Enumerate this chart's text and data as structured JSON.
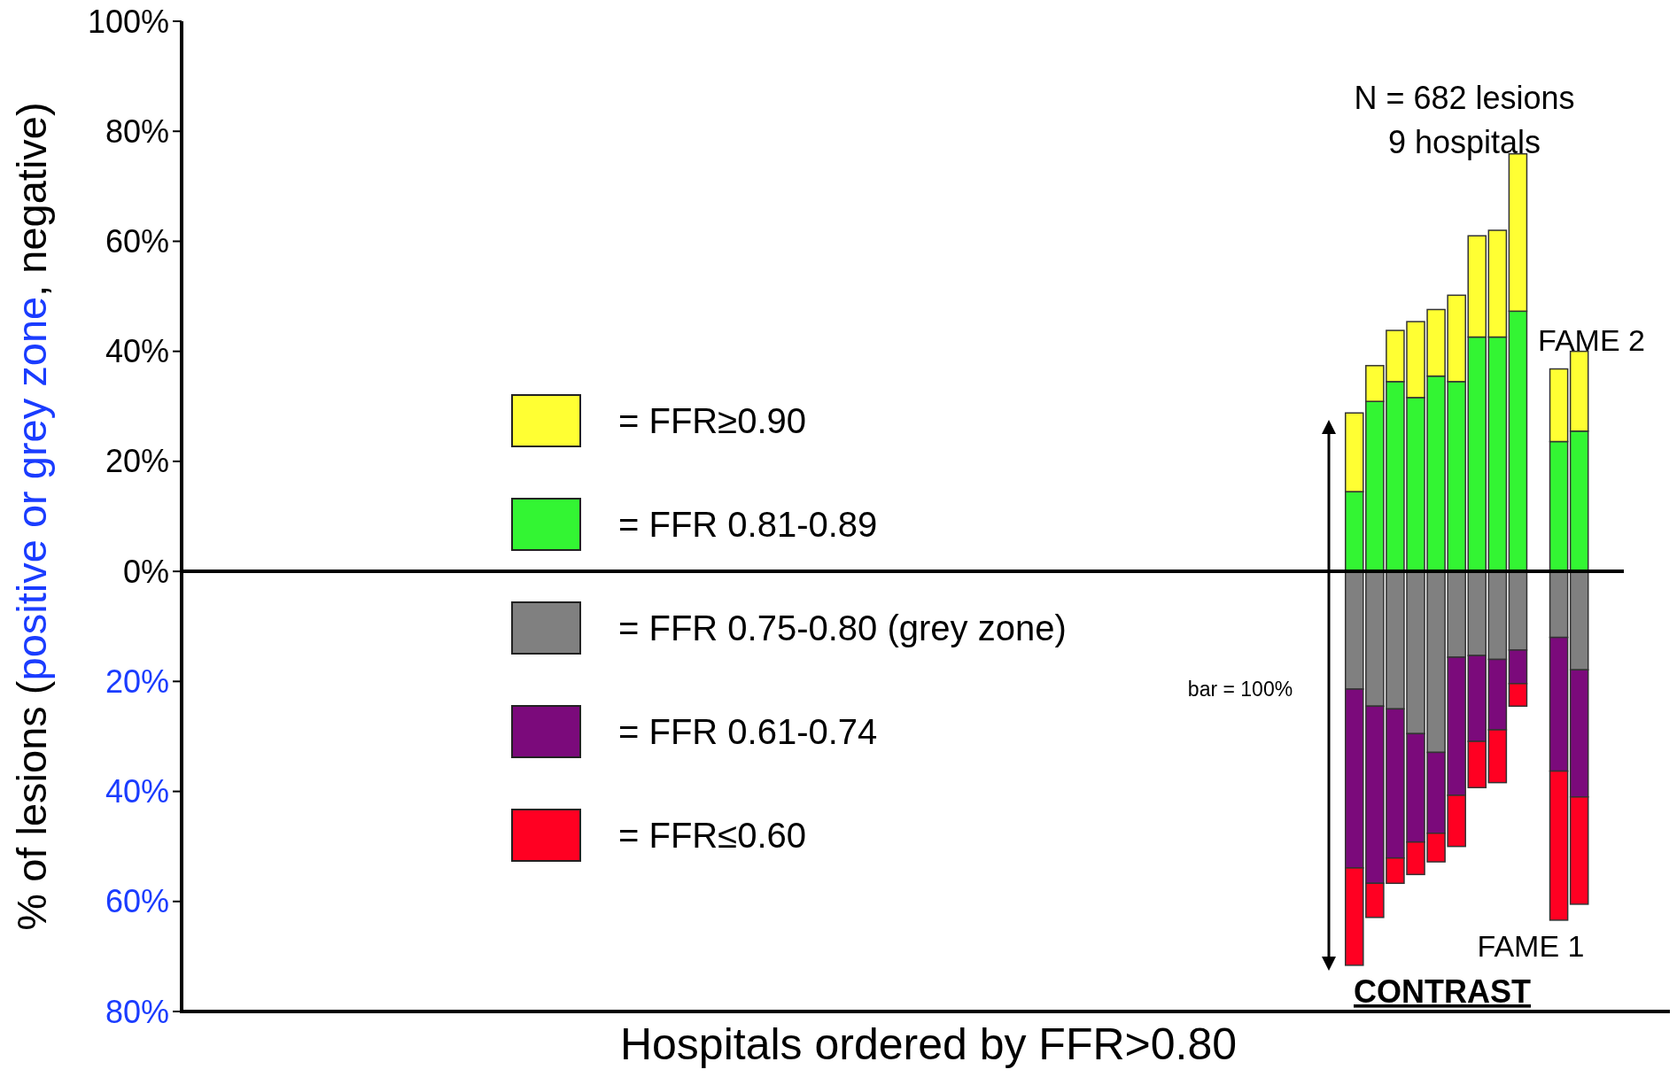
{
  "chart_data": {
    "type": "bar",
    "stacked": true,
    "xlabel": "Hospitals ordered by FFR>0.80",
    "ylabel": "% of lesions (positive or grey zone, negative)",
    "categories": [
      null,
      null,
      null,
      null,
      null,
      null,
      null,
      null,
      null,
      null,
      null,
      null,
      null,
      null,
      null,
      null,
      null,
      null,
      null,
      null,
      null,
      null,
      null,
      null,
      null,
      null,
      null,
      null,
      null,
      null,
      null,
      null,
      null,
      null,
      null,
      null,
      null,
      null,
      null,
      null,
      null,
      null,
      null,
      null,
      null,
      null,
      null,
      null,
      null,
      null,
      null,
      null,
      null,
      null,
      null,
      null,
      null,
      null,
      null,
      null,
      null,
      null,
      null,
      null,
      null,
      null,
      null,
      null,
      null,
      null,
      null,
      null,
      null
    ],
    "series": [
      {
        "name": "= FFR 0.81-0.89",
        "color": "#33f533",
        "values": [
          null,
          null,
          null,
          null,
          null,
          null,
          null,
          null,
          null,
          null,
          null,
          null,
          null,
          null,
          null,
          null,
          null,
          null,
          null,
          null,
          null,
          null,
          null,
          null,
          null,
          null,
          null,
          null,
          null,
          null,
          null,
          null,
          null,
          null,
          null,
          null,
          null,
          null,
          null,
          null,
          null,
          null,
          null,
          null,
          null,
          null,
          null,
          null,
          null,
          null,
          null,
          null,
          null,
          null,
          null,
          null,
          null,
          null,
          14.5,
          30.9,
          34.5,
          31.6,
          35.5,
          34.5,
          42.6,
          42.6,
          47.3,
          null,
          23.6,
          25.5,
          null,
          null,
          null
        ]
      },
      {
        "name": "= FFR≥0.90",
        "color": "#ffff33",
        "values": [
          null,
          null,
          null,
          null,
          null,
          null,
          null,
          null,
          null,
          null,
          null,
          null,
          null,
          null,
          null,
          null,
          null,
          null,
          null,
          null,
          null,
          null,
          null,
          null,
          null,
          null,
          null,
          null,
          null,
          null,
          null,
          null,
          null,
          null,
          null,
          null,
          null,
          null,
          null,
          null,
          null,
          null,
          null,
          null,
          null,
          null,
          null,
          null,
          null,
          null,
          null,
          null,
          null,
          null,
          null,
          null,
          null,
          null,
          14.3,
          6.5,
          9.3,
          13.8,
          12.1,
          15.7,
          18.4,
          19.4,
          28.6,
          null,
          13.2,
          14.5,
          null,
          null,
          null
        ]
      },
      {
        "name": "= FFR 0.75-0.80 (grey zone)",
        "color": "#808080",
        "values": [
          null,
          null,
          null,
          null,
          null,
          null,
          null,
          null,
          null,
          null,
          null,
          null,
          null,
          null,
          null,
          null,
          null,
          null,
          null,
          null,
          null,
          null,
          null,
          null,
          null,
          null,
          null,
          null,
          null,
          null,
          null,
          null,
          null,
          null,
          null,
          null,
          null,
          null,
          null,
          null,
          null,
          null,
          null,
          null,
          null,
          null,
          null,
          null,
          null,
          null,
          null,
          null,
          null,
          null,
          null,
          null,
          null,
          null,
          -21.4,
          -24.5,
          -25.0,
          -29.5,
          -32.9,
          -15.6,
          -15.3,
          -16.0,
          -14.3,
          null,
          -12.0,
          -17.9,
          null,
          null,
          null
        ]
      },
      {
        "name": "= FFR 0.61-0.74",
        "color": "#7b0a7b",
        "values": [
          null,
          null,
          null,
          null,
          null,
          null,
          null,
          null,
          null,
          null,
          null,
          null,
          null,
          null,
          null,
          null,
          null,
          null,
          null,
          null,
          null,
          null,
          null,
          null,
          null,
          null,
          null,
          null,
          null,
          null,
          null,
          null,
          null,
          null,
          null,
          null,
          null,
          null,
          null,
          null,
          null,
          null,
          null,
          null,
          null,
          null,
          null,
          null,
          null,
          null,
          null,
          null,
          null,
          null,
          null,
          null,
          null,
          null,
          -32.5,
          -32.2,
          -27.1,
          -19.7,
          -14.7,
          -25.1,
          -15.6,
          -12.8,
          -6.1,
          null,
          -24.3,
          -23.1,
          null,
          null,
          null
        ]
      },
      {
        "name": "= FFR≤0.60",
        "color": "#ff0022",
        "values": [
          null,
          null,
          null,
          null,
          null,
          null,
          null,
          null,
          null,
          null,
          null,
          null,
          null,
          null,
          null,
          null,
          null,
          null,
          null,
          null,
          null,
          null,
          null,
          null,
          null,
          null,
          null,
          null,
          null,
          null,
          null,
          null,
          null,
          null,
          null,
          null,
          null,
          null,
          null,
          null,
          null,
          null,
          null,
          null,
          null,
          null,
          null,
          null,
          null,
          null,
          null,
          null,
          null,
          null,
          null,
          null,
          null,
          null,
          -17.7,
          -6.2,
          -4.6,
          -5.9,
          -5.2,
          -9.3,
          -8.4,
          -9.6,
          -4.1,
          null,
          -27.1,
          -19.5,
          null,
          null,
          null
        ]
      }
    ],
    "ylim": [
      -80,
      100
    ],
    "yticks": [
      {
        "value": -80,
        "label": "80%"
      },
      {
        "value": -60,
        "label": "60%"
      },
      {
        "value": -40,
        "label": "40%"
      },
      {
        "value": -20,
        "label": "20%"
      },
      {
        "value": 0,
        "label": "0%"
      },
      {
        "value": 20,
        "label": "20%"
      },
      {
        "value": 40,
        "label": "40%"
      },
      {
        "value": 60,
        "label": "60%"
      },
      {
        "value": 80,
        "label": "80%"
      },
      {
        "value": 100,
        "label": "100%"
      }
    ],
    "ref_lines": [
      {
        "axis": "y",
        "value": 0,
        "color": "#000000"
      }
    ],
    "legend": "left",
    "grid": false,
    "annotations": [
      "N = 682 lesions",
      "9 hospitals",
      "FAME 2",
      "FAME 1",
      "CONTRAST",
      "bar = 100%"
    ]
  }
}
